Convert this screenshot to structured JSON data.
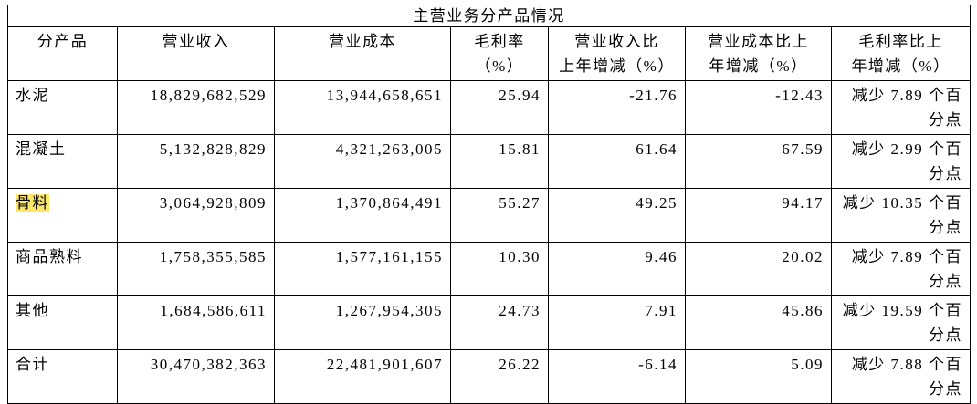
{
  "table": {
    "title": "主营业务分产品情况",
    "header": [
      [
        "分产品"
      ],
      [
        "营业收入"
      ],
      [
        "营业成本"
      ],
      [
        "毛利率",
        "（%）"
      ],
      [
        "营业收入比",
        "上年增减（%）"
      ],
      [
        "营业成本比上",
        "年增减（%）"
      ],
      [
        "毛利率比上",
        "年增减（%）"
      ]
    ],
    "rows": [
      [
        "水泥",
        "18,829,682,529",
        "13,944,658,651",
        "25.94",
        "-21.76",
        "-12.43",
        "减少 7.89 个百分点"
      ],
      [
        "混凝土",
        "5,132,828,829",
        "4,321,263,005",
        "15.81",
        "61.64",
        "67.59",
        "减少 2.99 个百分点"
      ],
      [
        "骨料",
        "3,064,928,809",
        "1,370,864,491",
        "55.27",
        "49.25",
        "94.17",
        "减少 10.35 个百分点"
      ],
      [
        "商品熟料",
        "1,758,355,585",
        "1,577,161,155",
        "10.30",
        "9.46",
        "20.02",
        "减少 7.89 个百分点"
      ],
      [
        "其他",
        "1,684,586,611",
        "1,267,954,305",
        "24.73",
        "7.91",
        "45.86",
        "减少 19.59 个百分点"
      ],
      [
        "合计",
        "30,470,382,363",
        "22,481,901,607",
        "26.22",
        "-6.14",
        "5.09",
        "减少 7.88 个百分点"
      ]
    ]
  }
}
